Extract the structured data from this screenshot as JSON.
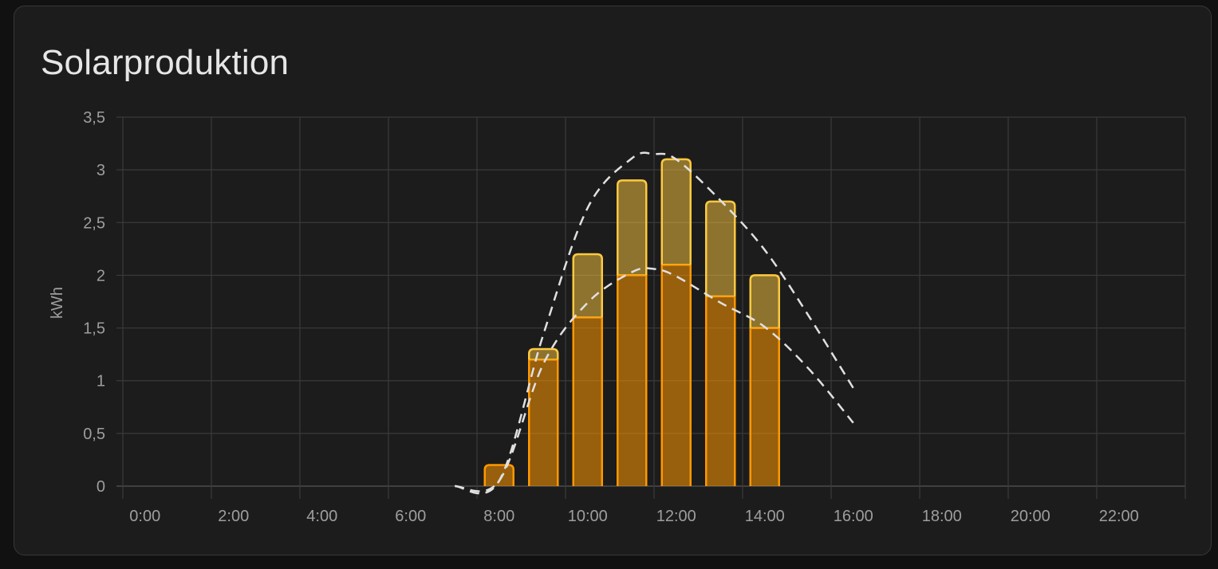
{
  "card": {
    "title": "Solarproduktion"
  },
  "chart_data": {
    "type": "bar",
    "ylabel": "kWh",
    "xlabel": "",
    "ylim": [
      0,
      3.5
    ],
    "yticks": [
      "0",
      "0,5",
      "1",
      "1,5",
      "2",
      "2,5",
      "3",
      "3,5"
    ],
    "ytick_values": [
      0,
      0.5,
      1,
      1.5,
      2,
      2.5,
      3,
      3.5
    ],
    "xticks": [
      "0:00",
      "2:00",
      "4:00",
      "6:00",
      "8:00",
      "10:00",
      "12:00",
      "14:00",
      "16:00",
      "18:00",
      "20:00",
      "22:00"
    ],
    "xlim_hours": [
      -0.5,
      23.5
    ],
    "grid": true,
    "stacked": true,
    "bar_hours": [
      8,
      9,
      10,
      11,
      12,
      13,
      14
    ],
    "series": [
      {
        "values": [
          0.2,
          1.2,
          1.6,
          2.0,
          2.1,
          1.8,
          1.5
        ],
        "color": "#ff9800"
      },
      {
        "values": [
          0.0,
          0.1,
          0.6,
          0.9,
          1.0,
          0.9,
          0.5
        ],
        "color": "#ffc940"
      }
    ],
    "forecast_lines": [
      {
        "hours": [
          7,
          8,
          9,
          10,
          11,
          11.5,
          12,
          13,
          14,
          15,
          16
        ],
        "values": [
          0,
          0.05,
          1.44,
          2.64,
          3.11,
          3.15,
          3.1,
          2.71,
          2.24,
          1.61,
          0.93
        ],
        "color": "#e0e0e0",
        "dashed": true
      },
      {
        "hours": [
          7,
          8,
          9,
          10,
          11,
          11.5,
          12,
          13,
          14,
          15,
          16
        ],
        "values": [
          0,
          0.05,
          1.16,
          1.74,
          2.03,
          2.06,
          1.99,
          1.74,
          1.51,
          1.11,
          0.6
        ],
        "color": "#e0e0e0",
        "dashed": true
      }
    ]
  }
}
